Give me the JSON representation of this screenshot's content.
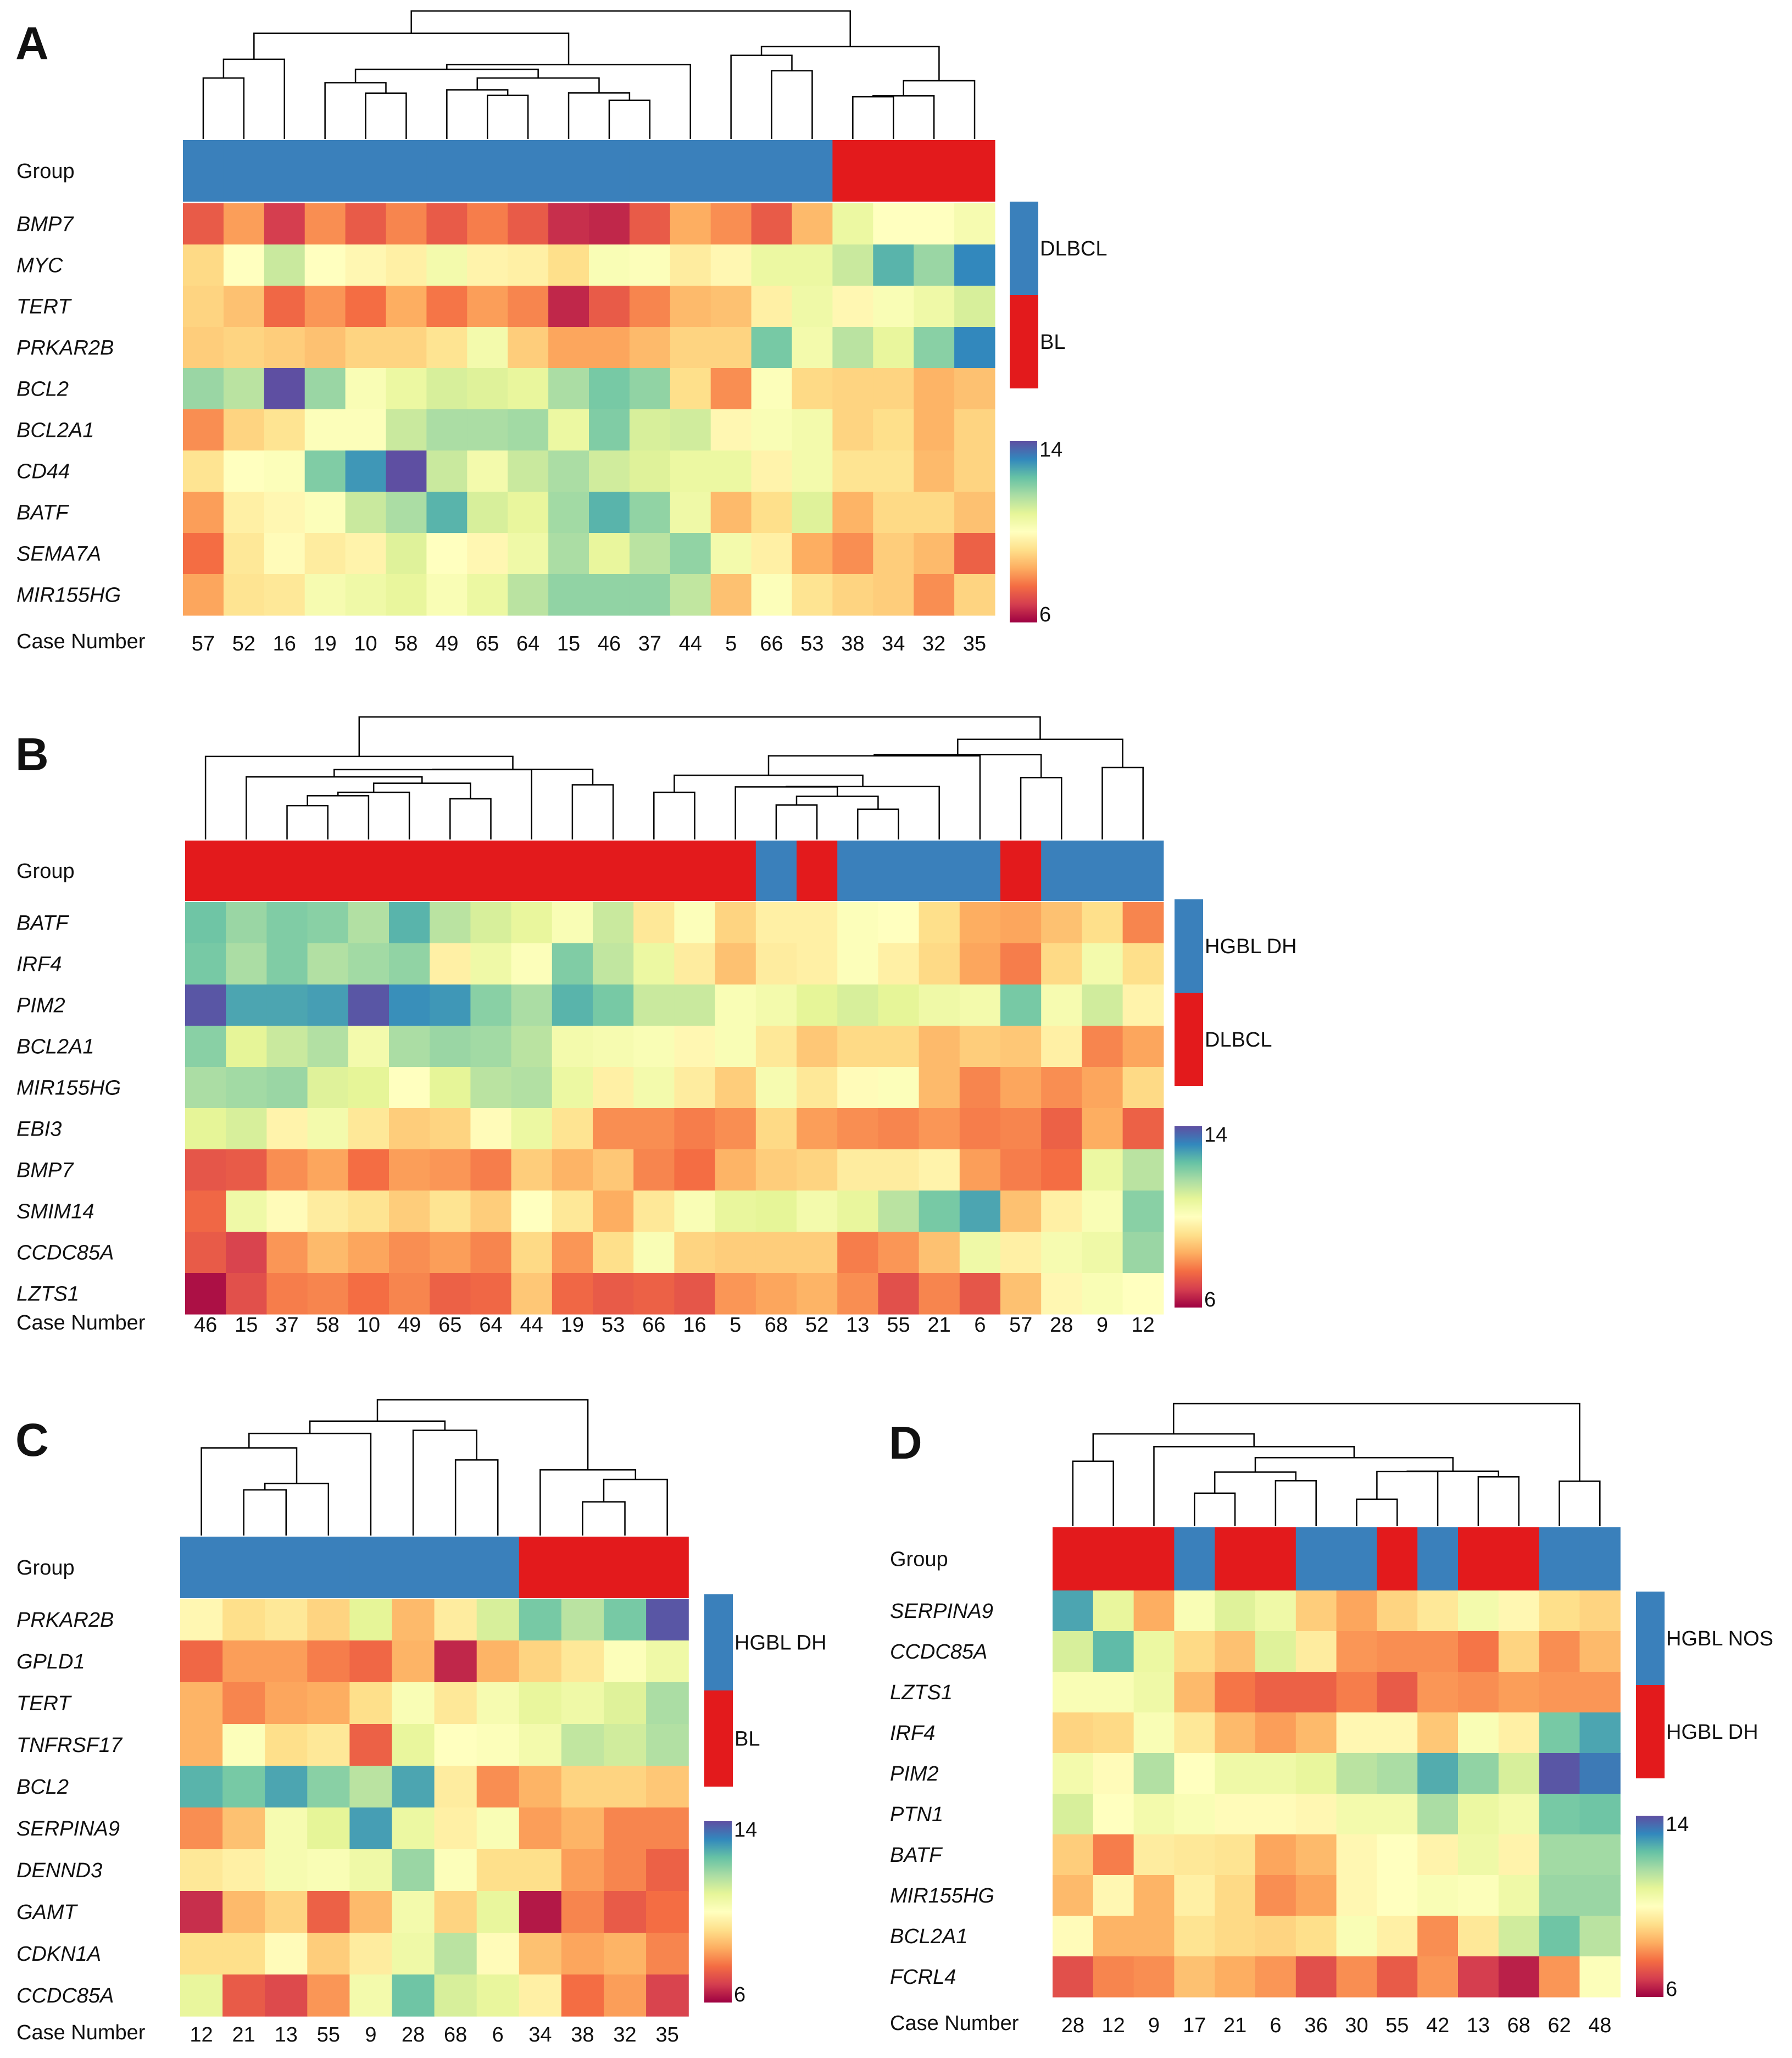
{
  "figure": {
    "colorscale": {
      "min": 6,
      "max": 14,
      "stops": [
        "#9e0142",
        "#d53e4f",
        "#f46d43",
        "#fdae61",
        "#fee08b",
        "#ffffbf",
        "#e6f598",
        "#abdda4",
        "#66c2a5",
        "#3288bd",
        "#5e4fa2"
      ]
    },
    "group_colors": [
      "#3a80bb",
      "#e31a1c"
    ]
  },
  "chart_data": [
    {
      "panel": "A",
      "type": "heatmap",
      "group_label": "Group",
      "case_label": "Case Number",
      "legend": [
        {
          "name": "DLBCL",
          "color": "#3a80bb"
        },
        {
          "name": "BL",
          "color": "#e31a1c"
        }
      ],
      "colorbar": {
        "max_label": "14",
        "min_label": "6"
      },
      "cases": [
        "57",
        "52",
        "16",
        "19",
        "10",
        "58",
        "49",
        "65",
        "64",
        "15",
        "46",
        "37",
        "44",
        "5",
        "66",
        "53",
        "38",
        "34",
        "32",
        "35"
      ],
      "groups": [
        0,
        0,
        0,
        0,
        0,
        0,
        0,
        0,
        0,
        0,
        0,
        0,
        0,
        0,
        0,
        0,
        1,
        1,
        1,
        1
      ],
      "genes": [
        "BMP7",
        "MYC",
        "TERT",
        "PRKAR2B",
        "BCL2",
        "BCL2A1",
        "CD44",
        "BATF",
        "SEMA7A",
        "MIR155HG"
      ],
      "values": [
        [
          7.3,
          8.2,
          6.8,
          8.0,
          7.3,
          7.9,
          7.3,
          7.8,
          7.3,
          6.6,
          6.5,
          7.3,
          8.4,
          8.0,
          7.3,
          8.6,
          10.6,
          10.0,
          10.0,
          10.3
        ],
        [
          9.1,
          10.0,
          11.2,
          10.0,
          9.8,
          9.6,
          10.4,
          9.7,
          9.6,
          9.2,
          10.2,
          10.1,
          9.5,
          9.8,
          10.6,
          10.6,
          11.2,
          12.6,
          11.8,
          13.2
        ],
        [
          9.0,
          8.7,
          7.5,
          8.1,
          7.6,
          8.4,
          7.7,
          8.2,
          7.9,
          6.5,
          7.3,
          7.9,
          8.6,
          8.7,
          9.6,
          10.5,
          9.8,
          10.2,
          10.5,
          11.0
        ],
        [
          8.9,
          9.0,
          8.9,
          8.7,
          9.0,
          9.0,
          9.3,
          10.4,
          8.9,
          8.3,
          8.3,
          8.6,
          9.0,
          9.0,
          12.2,
          10.4,
          11.4,
          10.7,
          12.0,
          13.2
        ],
        [
          11.8,
          11.4,
          14.0,
          11.8,
          10.2,
          10.6,
          11.0,
          10.9,
          10.7,
          11.6,
          12.2,
          11.9,
          9.2,
          8.0,
          10.1,
          9.1,
          9.0,
          9.0,
          8.5,
          8.7
        ],
        [
          8.0,
          9.0,
          9.3,
          10.1,
          10.1,
          11.2,
          11.6,
          11.6,
          11.7,
          10.6,
          12.1,
          11.0,
          11.1,
          9.8,
          10.2,
          10.4,
          9.0,
          9.2,
          8.5,
          9.0
        ],
        [
          9.3,
          10.0,
          10.1,
          12.1,
          13.0,
          14.0,
          11.2,
          10.4,
          11.2,
          11.6,
          11.1,
          10.9,
          10.6,
          10.6,
          9.7,
          10.4,
          9.3,
          9.3,
          8.6,
          9.0
        ],
        [
          8.2,
          9.6,
          9.8,
          10.1,
          11.2,
          11.6,
          12.6,
          11.0,
          10.7,
          11.7,
          12.6,
          11.9,
          10.5,
          8.6,
          9.2,
          10.9,
          8.5,
          9.1,
          9.1,
          8.7
        ],
        [
          7.6,
          9.4,
          9.9,
          9.5,
          9.7,
          10.9,
          10.0,
          9.8,
          10.5,
          11.6,
          10.7,
          11.4,
          11.9,
          10.4,
          9.6,
          8.4,
          8.0,
          8.9,
          8.6,
          7.4
        ],
        [
          8.3,
          9.3,
          9.4,
          10.3,
          10.5,
          10.7,
          10.2,
          10.6,
          11.4,
          11.9,
          11.9,
          11.9,
          11.3,
          8.7,
          10.1,
          9.3,
          9.0,
          8.9,
          8.0,
          9.0
        ]
      ]
    },
    {
      "panel": "B",
      "type": "heatmap",
      "group_label": "Group",
      "case_label": "Case Number",
      "legend": [
        {
          "name": "HGBL DH",
          "color": "#3a80bb"
        },
        {
          "name": "DLBCL",
          "color": "#e31a1c"
        }
      ],
      "colorbar": {
        "max_label": "14",
        "min_label": "6"
      },
      "cases": [
        "46",
        "15",
        "37",
        "58",
        "10",
        "49",
        "65",
        "64",
        "44",
        "19",
        "53",
        "66",
        "16",
        "5",
        "68",
        "52",
        "13",
        "55",
        "21",
        "6",
        "57",
        "28",
        "9",
        "12"
      ],
      "groups": [
        1,
        1,
        1,
        1,
        1,
        1,
        1,
        1,
        1,
        1,
        1,
        1,
        1,
        1,
        0,
        1,
        0,
        0,
        0,
        0,
        1,
        0,
        0,
        0
      ],
      "genes": [
        "BATF",
        "IRF4",
        "PIM2",
        "BCL2A1",
        "MIR155HG",
        "EBI3",
        "BMP7",
        "SMIM14",
        "CCDC85A",
        "LZTS1"
      ],
      "values": [
        [
          12.3,
          11.8,
          12.1,
          12.0,
          11.5,
          12.6,
          11.4,
          11.0,
          10.7,
          10.2,
          11.2,
          9.4,
          10.1,
          9.0,
          9.6,
          9.6,
          10.1,
          10.0,
          9.2,
          8.4,
          8.3,
          8.7,
          9.2,
          7.9
        ],
        [
          12.2,
          11.6,
          12.1,
          11.5,
          11.7,
          11.9,
          9.6,
          10.5,
          10.1,
          12.1,
          11.3,
          10.6,
          9.5,
          8.7,
          9.5,
          9.6,
          10.1,
          9.6,
          9.1,
          8.3,
          7.8,
          9.1,
          10.4,
          9.2
        ],
        [
          13.9,
          12.8,
          12.8,
          12.9,
          13.9,
          13.1,
          13.0,
          12.0,
          11.6,
          12.6,
          12.2,
          11.2,
          11.2,
          10.2,
          10.4,
          10.8,
          11.0,
          10.8,
          10.5,
          10.4,
          12.2,
          10.3,
          11.1,
          9.7
        ],
        [
          12.0,
          10.8,
          11.2,
          11.5,
          10.4,
          11.6,
          11.8,
          11.7,
          11.4,
          10.4,
          10.3,
          10.2,
          9.8,
          10.2,
          9.4,
          8.8,
          9.1,
          9.1,
          8.6,
          8.9,
          8.8,
          9.6,
          7.9,
          8.3
        ],
        [
          11.6,
          11.7,
          11.8,
          10.9,
          10.8,
          10.0,
          10.8,
          11.4,
          11.5,
          10.6,
          9.6,
          10.4,
          9.5,
          8.9,
          10.3,
          9.4,
          9.9,
          10.1,
          8.6,
          7.9,
          8.3,
          8.0,
          8.3,
          9.1
        ],
        [
          10.8,
          11.0,
          9.7,
          10.4,
          9.4,
          8.9,
          9.0,
          9.9,
          10.6,
          9.3,
          8.0,
          8.0,
          7.8,
          8.0,
          9.1,
          8.2,
          8.0,
          7.9,
          8.1,
          7.8,
          7.9,
          7.4,
          8.4,
          7.4
        ],
        [
          7.2,
          7.3,
          8.0,
          8.3,
          7.6,
          8.2,
          8.1,
          7.8,
          8.9,
          8.5,
          8.8,
          7.9,
          7.6,
          8.5,
          8.9,
          9.0,
          9.5,
          9.5,
          9.7,
          8.2,
          7.8,
          7.6,
          10.6,
          11.4
        ],
        [
          7.5,
          10.5,
          9.9,
          9.5,
          9.3,
          8.9,
          9.3,
          8.9,
          10.0,
          9.4,
          8.4,
          9.4,
          10.2,
          10.7,
          10.8,
          10.4,
          10.7,
          11.4,
          12.2,
          12.8,
          8.7,
          9.6,
          10.2,
          12.0
        ],
        [
          7.3,
          6.9,
          8.1,
          8.6,
          8.3,
          8.0,
          8.2,
          7.9,
          9.1,
          8.1,
          9.2,
          10.2,
          9.0,
          8.9,
          8.9,
          8.9,
          7.8,
          8.1,
          8.7,
          10.5,
          9.6,
          10.3,
          10.5,
          11.8
        ],
        [
          6.2,
          7.1,
          7.8,
          7.9,
          7.6,
          7.9,
          7.4,
          7.5,
          8.8,
          7.5,
          7.3,
          7.4,
          7.2,
          8.1,
          8.3,
          8.5,
          8.0,
          7.1,
          7.9,
          7.2,
          8.7,
          9.8,
          10.2,
          10.0
        ]
      ]
    },
    {
      "panel": "C",
      "type": "heatmap",
      "group_label": "Group",
      "case_label": "Case Number",
      "legend": [
        {
          "name": "HGBL DH",
          "color": "#3a80bb"
        },
        {
          "name": "BL",
          "color": "#e31a1c"
        }
      ],
      "colorbar": {
        "max_label": "14",
        "min_label": "6"
      },
      "cases": [
        "12",
        "21",
        "13",
        "55",
        "9",
        "28",
        "68",
        "6",
        "34",
        "38",
        "32",
        "35"
      ],
      "groups": [
        0,
        0,
        0,
        0,
        0,
        0,
        0,
        0,
        1,
        1,
        1,
        1
      ],
      "genes": [
        "PRKAR2B",
        "GPLD1",
        "TERT",
        "TNFRSF17",
        "BCL2",
        "SERPINA9",
        "DENND3",
        "GAMT",
        "CDKN1A",
        "CCDC85A"
      ],
      "values": [
        [
          9.8,
          9.2,
          9.4,
          9.0,
          10.8,
          8.6,
          9.5,
          11.0,
          12.2,
          11.4,
          12.2,
          13.9
        ],
        [
          7.5,
          8.2,
          8.2,
          7.8,
          7.5,
          8.5,
          6.5,
          8.5,
          9.0,
          9.4,
          10.1,
          10.5
        ],
        [
          8.5,
          7.9,
          8.3,
          8.4,
          9.2,
          10.2,
          9.4,
          10.3,
          10.7,
          10.5,
          10.9,
          11.6
        ],
        [
          8.5,
          10.1,
          9.2,
          9.4,
          7.4,
          10.7,
          10.0,
          10.1,
          10.4,
          11.3,
          11.1,
          11.5
        ],
        [
          12.6,
          12.2,
          12.8,
          12.0,
          11.4,
          12.8,
          9.5,
          8.0,
          8.5,
          9.0,
          9.0,
          8.8
        ],
        [
          8.0,
          8.7,
          10.3,
          10.8,
          12.9,
          10.6,
          9.6,
          10.2,
          8.2,
          8.5,
          7.9,
          7.9
        ],
        [
          9.4,
          9.6,
          10.3,
          10.2,
          10.5,
          11.8,
          10.1,
          9.2,
          9.2,
          8.2,
          7.9,
          7.4
        ],
        [
          6.6,
          8.6,
          9.0,
          7.4,
          8.6,
          10.4,
          9.0,
          10.7,
          6.3,
          7.9,
          7.3,
          7.6
        ],
        [
          9.2,
          9.2,
          9.9,
          8.9,
          9.5,
          10.5,
          11.4,
          9.9,
          8.7,
          8.3,
          8.5,
          7.9
        ],
        [
          10.7,
          7.3,
          7.0,
          8.1,
          10.4,
          12.3,
          11.0,
          10.7,
          9.6,
          7.6,
          8.2,
          6.9
        ]
      ]
    },
    {
      "panel": "D",
      "type": "heatmap",
      "group_label": "Group",
      "case_label": "Case Number",
      "legend": [
        {
          "name": "HGBL NOS",
          "color": "#3a80bb"
        },
        {
          "name": "HGBL DH",
          "color": "#e31a1c"
        }
      ],
      "colorbar": {
        "max_label": "14",
        "min_label": "6"
      },
      "cases": [
        "28",
        "12",
        "9",
        "17",
        "21",
        "6",
        "36",
        "30",
        "55",
        "42",
        "13",
        "68",
        "62",
        "48"
      ],
      "groups": [
        1,
        1,
        1,
        0,
        1,
        1,
        0,
        0,
        1,
        0,
        1,
        1,
        0,
        0
      ],
      "genes": [
        "SERPINA9",
        "CCDC85A",
        "LZTS1",
        "IRF4",
        "PIM2",
        "PTN1",
        "BATF",
        "MIR155HG",
        "BCL2A1",
        "FCRL4"
      ],
      "values": [
        [
          12.8,
          10.7,
          8.4,
          10.2,
          10.9,
          10.5,
          8.9,
          8.3,
          9.0,
          9.4,
          10.4,
          9.8,
          9.2,
          9.0
        ],
        [
          11.0,
          12.5,
          10.6,
          9.1,
          8.7,
          10.9,
          9.5,
          8.1,
          8.0,
          8.0,
          7.7,
          9.0,
          8.0,
          8.6
        ],
        [
          10.2,
          10.2,
          10.5,
          8.6,
          7.7,
          7.4,
          7.4,
          7.8,
          7.3,
          8.1,
          8.0,
          8.2,
          8.1,
          8.1
        ],
        [
          9.0,
          9.1,
          10.2,
          9.4,
          8.6,
          8.2,
          8.6,
          9.8,
          9.8,
          8.8,
          10.2,
          9.6,
          12.2,
          12.8
        ],
        [
          10.4,
          9.9,
          11.5,
          10.0,
          10.5,
          10.5,
          10.7,
          11.4,
          11.6,
          12.7,
          11.9,
          11.0,
          13.9,
          13.4
        ],
        [
          11.0,
          10.0,
          10.4,
          10.2,
          9.9,
          9.9,
          9.8,
          10.4,
          10.4,
          11.6,
          10.6,
          10.4,
          12.2,
          12.3
        ],
        [
          8.9,
          7.8,
          9.5,
          9.4,
          9.3,
          8.3,
          8.6,
          9.8,
          10.0,
          9.7,
          10.5,
          9.7,
          11.7,
          11.7
        ],
        [
          8.6,
          9.8,
          8.5,
          9.6,
          9.1,
          8.0,
          8.3,
          9.8,
          10.0,
          10.2,
          10.1,
          10.5,
          11.8,
          11.8
        ],
        [
          9.9,
          8.5,
          8.5,
          9.3,
          9.1,
          9.0,
          9.2,
          10.2,
          9.6,
          8.0,
          9.4,
          11.1,
          12.3,
          11.4
        ],
        [
          7.1,
          7.9,
          8.0,
          8.7,
          8.4,
          8.1,
          7.1,
          8.0,
          7.3,
          8.1,
          6.8,
          6.4,
          8.1,
          10.1
        ]
      ]
    }
  ]
}
